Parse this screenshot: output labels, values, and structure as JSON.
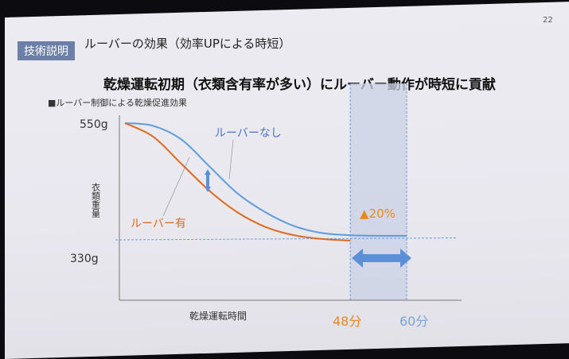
{
  "slide": {
    "page_number": "22",
    "section_tag": "技術説明",
    "title": "ルーバーの効果（効率UPによる時短）",
    "headline": "乾燥運転初期（衣類含有率が多い）にルーバー動作が時短に貢献"
  },
  "chart_data": {
    "type": "line",
    "title": "■ルーバー制御による乾燥促進効果",
    "xlabel": "乾燥運転時間",
    "ylabel": "衣類重量",
    "y_tick_labels": [
      "550g",
      "330g"
    ],
    "x_tick_labels": [
      "48分",
      "60分"
    ],
    "ylim": [
      230,
      560
    ],
    "xlim": [
      0,
      72
    ],
    "grid": false,
    "series": [
      {
        "name": "ルーバーなし",
        "color": "#5b9be0",
        "x": [
          0,
          6,
          12,
          18,
          24,
          30,
          36,
          42,
          48,
          54,
          60
        ],
        "y": [
          550,
          545,
          520,
          470,
          420,
          385,
          360,
          347,
          343,
          342,
          342
        ]
      },
      {
        "name": "ルーバー有",
        "color": "#e0691e",
        "x": [
          0,
          6,
          12,
          18,
          24,
          30,
          36,
          42,
          48
        ],
        "y": [
          550,
          525,
          475,
          425,
          385,
          358,
          343,
          336,
          333
        ]
      }
    ],
    "highlight_range": [
      48,
      60
    ],
    "annotation": "▲20%",
    "annotation_color": "#e8891e"
  }
}
